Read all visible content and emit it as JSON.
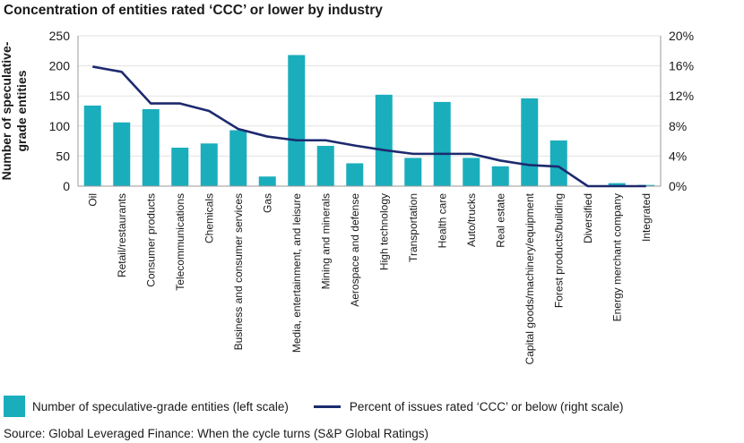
{
  "title": "Concentration of entities rated ‘CCC’ or lower by industry",
  "source": "Source: Global Leveraged Finance: When the cycle turns (S&P Global Ratings)",
  "colors": {
    "bar": "#1aaebd",
    "line": "#1d2a6e",
    "axis": "#9a9a9a",
    "grid": "#e3e3e3"
  },
  "chart_data": {
    "type": "bar",
    "categories": [
      "Oil",
      "Retail/restaurants",
      "Consumer products",
      "Telecommunications",
      "Chemicals",
      "Business and consumer services",
      "Gas",
      "Media, entertainment, and leisure",
      "Mining and minerals",
      "Aerospace and defense",
      "High technology",
      "Transportation",
      "Health care",
      "Auto/trucks",
      "Real estate",
      "Capital goods/machinery/equipment",
      "Forest products/building",
      "Diversified",
      "Energy merchant company",
      "Integrated"
    ],
    "series": [
      {
        "name": "Number of speculative-grade entities (left scale)",
        "type": "bar",
        "axis": "left",
        "values": [
          134,
          106,
          128,
          64,
          71,
          93,
          16,
          218,
          67,
          38,
          152,
          47,
          140,
          47,
          33,
          146,
          76,
          0,
          5,
          2
        ]
      },
      {
        "name": "Percent of issues rated ‘CCC’ or below (right scale)",
        "type": "line",
        "axis": "right",
        "values": [
          15.9,
          15.2,
          11.0,
          11.0,
          10.0,
          7.6,
          6.6,
          6.1,
          6.1,
          5.4,
          4.8,
          4.3,
          4.3,
          4.3,
          3.4,
          2.8,
          2.6,
          0,
          0,
          0
        ]
      }
    ],
    "ylabel": "Number of speculative-grade entities",
    "ylim": [
      0,
      250
    ],
    "yticks": [
      "0",
      "50",
      "100",
      "150",
      "200",
      "250"
    ],
    "ylim_right": [
      0,
      20
    ],
    "yticks_right": [
      "0%",
      "4%",
      "8%",
      "12%",
      "16%",
      "20%"
    ],
    "grid": true,
    "legend_position": "bottom"
  }
}
